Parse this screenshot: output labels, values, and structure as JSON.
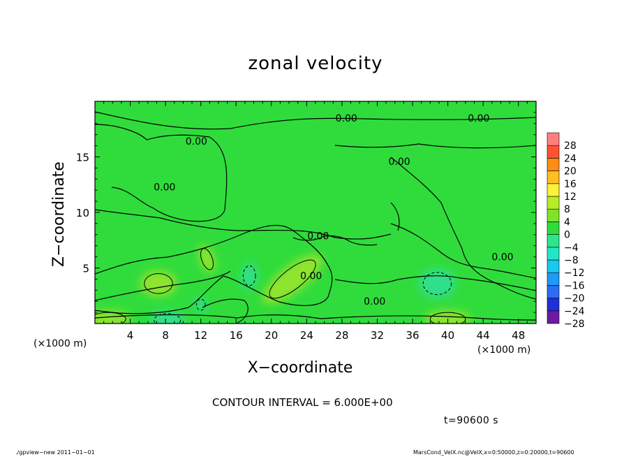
{
  "chart_data": {
    "type": "heatmap",
    "title": "zonal velocity",
    "xlabel": "X−coordinate",
    "ylabel": "Z−coordinate",
    "x_unit_label": "(×1000 m)",
    "xlim": [
      0,
      50
    ],
    "ylim": [
      0,
      20
    ],
    "x_ticks": [
      4,
      8,
      12,
      16,
      20,
      24,
      28,
      32,
      36,
      40,
      44,
      48
    ],
    "y_ticks": [
      5,
      10,
      15
    ],
    "colorbar": {
      "levels": [
        -28,
        -24,
        -20,
        -16,
        -12,
        -8,
        -4,
        0,
        4,
        8,
        12,
        16,
        20,
        24,
        28
      ],
      "tick_labels": [
        "28",
        "24",
        "20",
        "16",
        "12",
        "8",
        "4",
        "0",
        "−4",
        "−8",
        "−12",
        "−16",
        "−20",
        "−24",
        "−28"
      ],
      "colors": [
        "#6c1aa0",
        "#1f2fd8",
        "#2d6cf0",
        "#1f9af5",
        "#17c8f0",
        "#22e6c6",
        "#2ce68a",
        "#30dc3c",
        "#7fe428",
        "#b6ec28",
        "#fff03a",
        "#ffbf1f",
        "#ff8d13",
        "#ff5232",
        "#ff7f7f"
      ]
    },
    "background_value": 0,
    "contour_interval_text": "CONTOUR INTERVAL = 6.000E+00",
    "contour_labels": [
      {
        "text": "0.00",
        "x": 28.5,
        "y": 18.5
      },
      {
        "text": "0.00",
        "x": 43.5,
        "y": 18.5
      },
      {
        "text": "0.00",
        "x": 11.5,
        "y": 16.4
      },
      {
        "text": "0.00",
        "x": 34.5,
        "y": 14.6
      },
      {
        "text": "0.00",
        "x": 7.9,
        "y": 12.3
      },
      {
        "text": "0.00",
        "x": 25.3,
        "y": 7.9
      },
      {
        "text": "0.00",
        "x": 46.2,
        "y": 6.0
      },
      {
        "text": "0.00",
        "x": 24.5,
        "y": 4.3
      },
      {
        "text": "0.00",
        "x": 31.7,
        "y": 2.0
      }
    ],
    "anomalies": [
      {
        "kind": "positive",
        "cx": 22.4,
        "cy": 4.0,
        "rx": 3.2,
        "ry": 0.9,
        "angle": -38
      },
      {
        "kind": "positive",
        "cx": 7.2,
        "cy": 3.6,
        "rx": 1.6,
        "ry": 0.9,
        "angle": 0
      },
      {
        "kind": "positive",
        "cx": 12.7,
        "cy": 5.8,
        "rx": 0.6,
        "ry": 1.0,
        "angle": -20
      },
      {
        "kind": "positive",
        "cx": 1.5,
        "cy": 0.4,
        "rx": 2.0,
        "ry": 0.6,
        "angle": 0
      },
      {
        "kind": "positive",
        "cx": 40.0,
        "cy": 0.4,
        "rx": 2.0,
        "ry": 0.6,
        "angle": 0
      },
      {
        "kind": "negative",
        "cx": 38.8,
        "cy": 3.6,
        "rx": 1.6,
        "ry": 1.0,
        "angle": 0
      },
      {
        "kind": "negative",
        "cx": 8.2,
        "cy": 0.3,
        "rx": 1.5,
        "ry": 0.6,
        "angle": 0
      },
      {
        "kind": "negative",
        "cx": 17.5,
        "cy": 4.3,
        "rx": 0.7,
        "ry": 0.9,
        "angle": 0
      },
      {
        "kind": "negative",
        "cx": 12.0,
        "cy": 1.7,
        "rx": 0.5,
        "ry": 0.5,
        "angle": 0
      }
    ]
  },
  "annotations": {
    "x_unit_left": "(×1000 m)",
    "x_unit_right": "(×1000 m)",
    "time": "t=90600  s",
    "footer_left": "./gpview−new   2011−01−01",
    "footer_right": "MarsCond_VelX.nc@VelX,x=0:50000,z=0:20000,t=90600"
  }
}
